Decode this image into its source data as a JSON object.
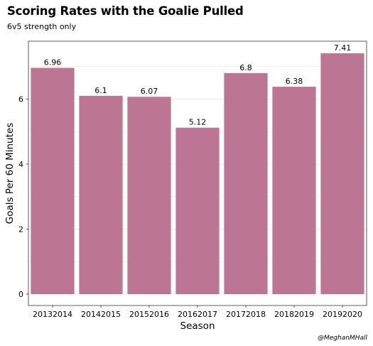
{
  "chart_data": {
    "type": "bar",
    "title": "Scoring Rates with the Goalie Pulled",
    "subtitle": "6v5 strength only",
    "xlabel": "Season",
    "ylabel": "Goals Per 60 Minutes",
    "categories": [
      "20132014",
      "20142015",
      "20152016",
      "20162017",
      "20172018",
      "20182019",
      "20192020"
    ],
    "values": [
      6.96,
      6.1,
      6.07,
      5.12,
      6.8,
      6.38,
      7.41
    ],
    "value_labels": [
      "6.96",
      "6.1",
      "6.07",
      "5.12",
      "6.8",
      "6.38",
      "7.41"
    ],
    "yticks": [
      0,
      2,
      4,
      6
    ],
    "ylim": [
      -0.35,
      7.78
    ],
    "grid": true,
    "legend": "none",
    "bar_color": "#bc7694",
    "grid_color": "#ebebeb",
    "caption": "@MeghanMHall"
  }
}
